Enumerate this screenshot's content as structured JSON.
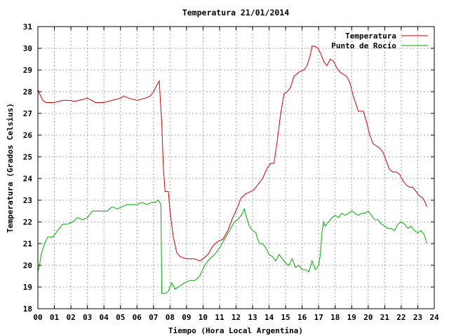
{
  "chart_data": {
    "type": "line",
    "title": "Temperatura 21/01/2014",
    "xlabel": "Tiempo (Hora Local Argentina)",
    "ylabel": "Temperatura (Grados Celsius)",
    "xlim": [
      0,
      24
    ],
    "ylim": [
      18,
      31
    ],
    "xticks": [
      "00",
      "01",
      "02",
      "03",
      "04",
      "05",
      "06",
      "07",
      "08",
      "09",
      "10",
      "11",
      "12",
      "13",
      "14",
      "15",
      "16",
      "17",
      "18",
      "19",
      "20",
      "21",
      "22",
      "23",
      "24"
    ],
    "yticks": [
      "18",
      "19",
      "20",
      "21",
      "22",
      "23",
      "24",
      "25",
      "26",
      "27",
      "28",
      "29",
      "30",
      "31"
    ],
    "grid": true,
    "legend_position": "top-right",
    "series": [
      {
        "name": "Temperatura",
        "color": "#cc0000",
        "x": [
          0.0,
          0.1,
          0.3,
          0.5,
          1.0,
          1.5,
          2.0,
          2.2,
          2.5,
          3.0,
          3.5,
          4.0,
          4.5,
          5.0,
          5.2,
          5.5,
          6.0,
          6.5,
          6.8,
          7.0,
          7.2,
          7.35,
          7.5,
          7.6,
          7.7,
          7.9,
          8.0,
          8.2,
          8.4,
          8.6,
          9.0,
          9.5,
          9.8,
          10.0,
          10.3,
          10.6,
          10.9,
          11.2,
          11.5,
          11.8,
          12.1,
          12.3,
          12.6,
          12.9,
          13.1,
          13.3,
          13.6,
          13.9,
          14.1,
          14.3,
          14.5,
          14.7,
          14.9,
          15.1,
          15.3,
          15.5,
          15.8,
          16.1,
          16.3,
          16.5,
          16.6,
          16.7,
          16.9,
          17.1,
          17.3,
          17.5,
          17.7,
          17.9,
          18.1,
          18.3,
          18.5,
          18.7,
          18.9,
          19.1,
          19.4,
          19.7,
          19.9,
          20.1,
          20.3,
          20.5,
          20.7,
          20.9,
          21.1,
          21.3,
          21.5,
          21.7,
          21.9,
          22.1,
          22.3,
          22.5,
          22.7,
          22.9,
          23.1,
          23.3,
          23.45,
          23.55
        ],
        "y": [
          28.1,
          27.9,
          27.6,
          27.5,
          27.5,
          27.6,
          27.6,
          27.55,
          27.6,
          27.7,
          27.5,
          27.5,
          27.6,
          27.7,
          27.8,
          27.7,
          27.6,
          27.7,
          27.8,
          28.0,
          28.3,
          28.5,
          26.5,
          24.5,
          23.4,
          23.4,
          22.5,
          21.3,
          20.6,
          20.4,
          20.3,
          20.3,
          20.2,
          20.3,
          20.5,
          20.9,
          21.1,
          21.2,
          21.6,
          22.2,
          22.7,
          23.1,
          23.3,
          23.4,
          23.5,
          23.7,
          24.0,
          24.5,
          24.7,
          24.7,
          25.8,
          27.0,
          27.9,
          28.0,
          28.2,
          28.7,
          28.9,
          29.0,
          29.2,
          29.7,
          30.1,
          30.1,
          30.05,
          29.8,
          29.4,
          29.2,
          29.5,
          29.4,
          29.1,
          28.9,
          28.8,
          28.7,
          28.4,
          27.8,
          27.1,
          27.1,
          26.6,
          26.0,
          25.6,
          25.5,
          25.4,
          25.2,
          24.8,
          24.4,
          24.3,
          24.3,
          24.2,
          23.9,
          23.7,
          23.6,
          23.6,
          23.4,
          23.2,
          23.1,
          22.9,
          22.7
        ]
      },
      {
        "name": "Punto de Rocío",
        "color": "#00aa00",
        "x": [
          0.0,
          0.1,
          0.2,
          0.4,
          0.6,
          0.9,
          1.2,
          1.5,
          1.8,
          2.1,
          2.4,
          2.7,
          3.0,
          3.3,
          3.6,
          3.9,
          4.2,
          4.5,
          4.8,
          5.1,
          5.4,
          5.7,
          6.0,
          6.3,
          6.6,
          6.9,
          7.1,
          7.3,
          7.45,
          7.5,
          7.7,
          7.9,
          8.1,
          8.3,
          8.5,
          8.7,
          8.9,
          9.2,
          9.5,
          9.8,
          10.1,
          10.4,
          10.7,
          11.0,
          11.3,
          11.6,
          11.9,
          12.1,
          12.3,
          12.4,
          12.5,
          12.6,
          12.8,
          13.0,
          13.2,
          13.4,
          13.6,
          13.8,
          14.0,
          14.2,
          14.4,
          14.6,
          14.8,
          15.0,
          15.2,
          15.4,
          15.6,
          15.8,
          16.0,
          16.2,
          16.4,
          16.6,
          16.8,
          17.0,
          17.1,
          17.2,
          17.3,
          17.4,
          17.6,
          17.8,
          18.0,
          18.2,
          18.4,
          18.6,
          18.8,
          19.0,
          19.2,
          19.4,
          19.6,
          19.8,
          20.0,
          20.2,
          20.4,
          20.6,
          20.8,
          21.0,
          21.2,
          21.4,
          21.6,
          21.8,
          22.0,
          22.2,
          22.4,
          22.6,
          22.8,
          23.0,
          23.2,
          23.4,
          23.55
        ],
        "y": [
          19.7,
          20.0,
          20.5,
          21.0,
          21.3,
          21.3,
          21.6,
          21.9,
          21.9,
          22.0,
          22.2,
          22.1,
          22.2,
          22.5,
          22.5,
          22.5,
          22.5,
          22.7,
          22.6,
          22.7,
          22.8,
          22.8,
          22.8,
          22.9,
          22.8,
          22.9,
          22.9,
          23.0,
          22.8,
          18.7,
          18.7,
          18.8,
          19.2,
          18.9,
          19.0,
          19.1,
          19.2,
          19.3,
          19.3,
          19.5,
          20.0,
          20.3,
          20.5,
          20.8,
          21.2,
          21.6,
          22.0,
          22.1,
          22.3,
          22.4,
          22.6,
          22.3,
          21.8,
          21.6,
          21.5,
          21.0,
          21.0,
          20.8,
          20.5,
          20.4,
          20.2,
          20.5,
          20.3,
          20.1,
          20.0,
          20.3,
          19.9,
          20.0,
          19.8,
          19.8,
          19.7,
          20.2,
          19.8,
          20.0,
          20.5,
          21.5,
          22.0,
          21.8,
          22.0,
          22.2,
          22.3,
          22.2,
          22.4,
          22.3,
          22.4,
          22.5,
          22.4,
          22.3,
          22.4,
          22.4,
          22.5,
          22.3,
          22.1,
          22.1,
          21.9,
          21.8,
          21.7,
          21.7,
          21.6,
          21.9,
          22.0,
          21.9,
          21.7,
          21.8,
          21.6,
          21.5,
          21.6,
          21.4,
          21.0
        ]
      }
    ]
  }
}
